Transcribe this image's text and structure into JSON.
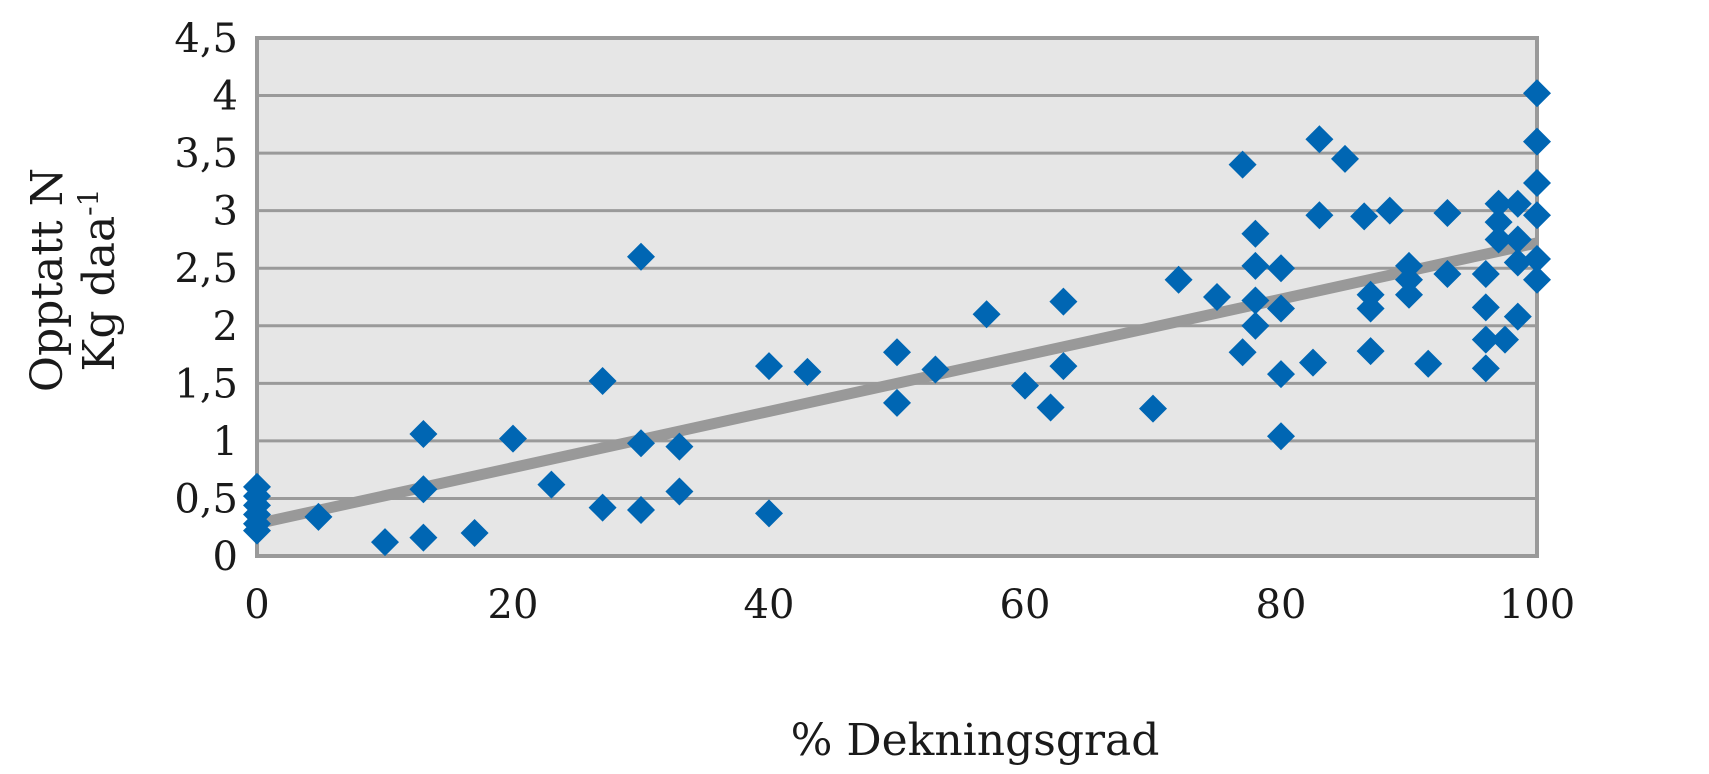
{
  "chart_data": {
    "type": "scatter",
    "title": "",
    "xlabel": "% Dekningsgrad",
    "ylabel_line1": "Opptatt N",
    "ylabel_line2_base": "Kg daa",
    "ylabel_line2_sup": "-1",
    "xlim": [
      0,
      100
    ],
    "ylim": [
      0,
      4.5
    ],
    "xticks": [
      0,
      20,
      40,
      60,
      80,
      100
    ],
    "yticks": [
      0,
      0.5,
      1,
      1.5,
      2,
      2.5,
      3,
      3.5,
      4,
      4.5
    ],
    "xtick_labels": [
      "0",
      "20",
      "40",
      "60",
      "80",
      "100"
    ],
    "ytick_labels": [
      "0",
      "0,5",
      "1",
      "1,5",
      "2",
      "2,5",
      "3",
      "3,5",
      "4",
      "4,5"
    ],
    "grid": "horizontal",
    "legend": "none",
    "colors": {
      "points": "#0066b3",
      "trendline": "#999999",
      "plot_background": "#e6e6e6",
      "gridlines": "#9a9a9a"
    },
    "trendline": {
      "x": [
        0,
        100
      ],
      "y": [
        0.28,
        2.72
      ]
    },
    "series": [
      {
        "points": [
          [
            0,
            0.6
          ],
          [
            0,
            0.52
          ],
          [
            0,
            0.44
          ],
          [
            0,
            0.36
          ],
          [
            0,
            0.28
          ],
          [
            0,
            0.22
          ],
          [
            4.8,
            0.34
          ],
          [
            10,
            0.12
          ],
          [
            13,
            1.06
          ],
          [
            13,
            0.58
          ],
          [
            13,
            0.16
          ],
          [
            17,
            0.2
          ],
          [
            20,
            1.02
          ],
          [
            23,
            0.62
          ],
          [
            27,
            1.52
          ],
          [
            27,
            0.42
          ],
          [
            30,
            2.6
          ],
          [
            30,
            0.98
          ],
          [
            30,
            0.4
          ],
          [
            33,
            0.95
          ],
          [
            33,
            0.56
          ],
          [
            40,
            1.65
          ],
          [
            40,
            0.37
          ],
          [
            43,
            1.6
          ],
          [
            50,
            1.77
          ],
          [
            50,
            1.33
          ],
          [
            53,
            1.62
          ],
          [
            57,
            2.1
          ],
          [
            60,
            1.48
          ],
          [
            62,
            1.29
          ],
          [
            63,
            2.21
          ],
          [
            63,
            1.65
          ],
          [
            70,
            1.28
          ],
          [
            72,
            2.4
          ],
          [
            75,
            2.25
          ],
          [
            77,
            3.4
          ],
          [
            77,
            1.77
          ],
          [
            78,
            2.8
          ],
          [
            78,
            2.52
          ],
          [
            78,
            2.22
          ],
          [
            78,
            2.0
          ],
          [
            80,
            1.58
          ],
          [
            80,
            2.5
          ],
          [
            80,
            2.15
          ],
          [
            80,
            1.04
          ],
          [
            82.5,
            1.68
          ],
          [
            83,
            3.62
          ],
          [
            83,
            2.96
          ],
          [
            85,
            3.45
          ],
          [
            86.5,
            2.95
          ],
          [
            87,
            2.27
          ],
          [
            87,
            2.15
          ],
          [
            87,
            1.78
          ],
          [
            88.5,
            3.0
          ],
          [
            90,
            2.52
          ],
          [
            90,
            2.4
          ],
          [
            90,
            2.27
          ],
          [
            91.5,
            1.67
          ],
          [
            93,
            2.98
          ],
          [
            93,
            2.45
          ],
          [
            96,
            2.45
          ],
          [
            96,
            2.16
          ],
          [
            96,
            1.88
          ],
          [
            96,
            1.63
          ],
          [
            97,
            3.06
          ],
          [
            97,
            2.9
          ],
          [
            97,
            2.75
          ],
          [
            97.5,
            1.88
          ],
          [
            98.5,
            3.06
          ],
          [
            98.5,
            2.75
          ],
          [
            98.5,
            2.55
          ],
          [
            98.5,
            2.08
          ],
          [
            100,
            4.02
          ],
          [
            100,
            3.6
          ],
          [
            100,
            3.24
          ],
          [
            100,
            2.96
          ],
          [
            100,
            2.58
          ],
          [
            100,
            2.4
          ]
        ]
      }
    ]
  }
}
